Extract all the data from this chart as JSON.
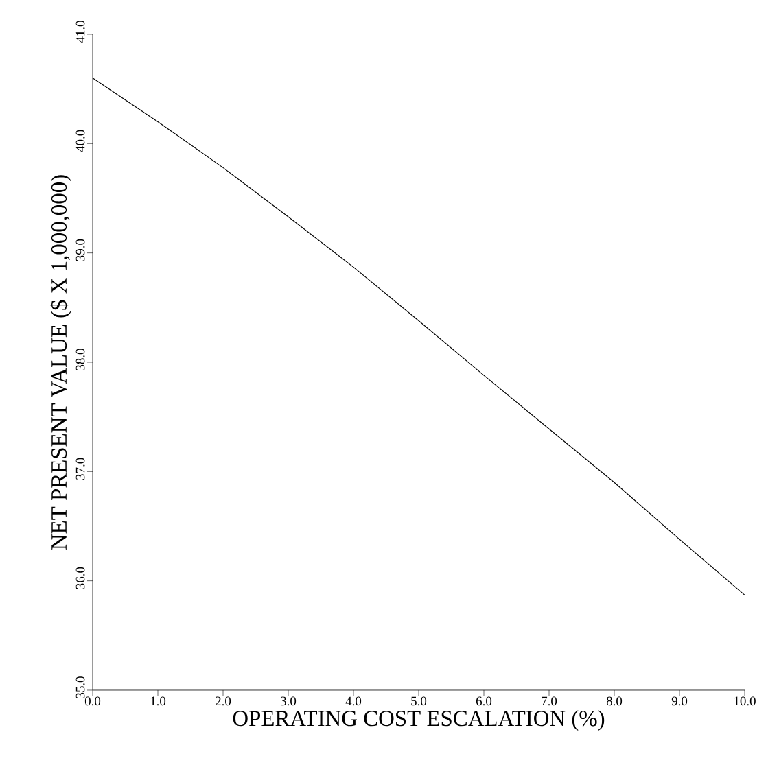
{
  "chart_data": {
    "type": "line",
    "xlabel": "OPERATING COST ESCALATION (%)",
    "ylabel": "NET PRESENT VALUE ($ X 1,000,000)",
    "x": [
      0,
      1,
      2,
      3,
      4,
      5,
      6,
      7,
      8,
      9,
      10
    ],
    "values": [
      40.6,
      40.2,
      39.78,
      39.33,
      38.87,
      38.38,
      37.88,
      37.39,
      36.9,
      36.38,
      35.87
    ],
    "color": "#000000",
    "xlim": [
      0,
      10
    ],
    "ylim": [
      35,
      41
    ],
    "xticks": [
      {
        "value": 0,
        "label": "0.0"
      },
      {
        "value": 1,
        "label": "1.0"
      },
      {
        "value": 2,
        "label": "2.0"
      },
      {
        "value": 3,
        "label": "3.0"
      },
      {
        "value": 4,
        "label": "4.0"
      },
      {
        "value": 5,
        "label": "5.0"
      },
      {
        "value": 6,
        "label": "6.0"
      },
      {
        "value": 7,
        "label": "7.0"
      },
      {
        "value": 8,
        "label": "8.0"
      },
      {
        "value": 9,
        "label": "9.0"
      },
      {
        "value": 10,
        "label": "10.0"
      }
    ],
    "yticks": [
      {
        "value": 35,
        "label": "35.0"
      },
      {
        "value": 36,
        "label": "36.0"
      },
      {
        "value": 37,
        "label": "37.0"
      },
      {
        "value": 38,
        "label": "38.0"
      },
      {
        "value": 39,
        "label": "39.0"
      },
      {
        "value": 40,
        "label": "40.0"
      },
      {
        "value": 41,
        "label": "41.0"
      }
    ],
    "grid": false,
    "marker": "none",
    "line_style": "solid"
  }
}
